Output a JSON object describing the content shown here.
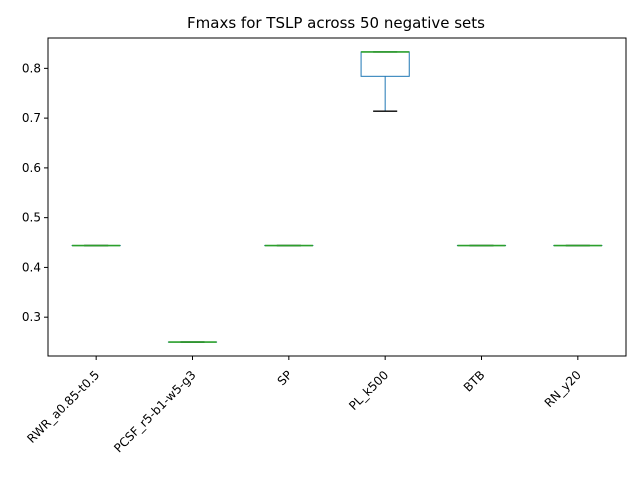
{
  "chart_data": {
    "type": "box",
    "title": "Fmaxs for TSLP across 50 negative sets",
    "xlabel": "",
    "ylabel": "",
    "ylim": [
      0.222,
      0.861
    ],
    "yticks": [
      0.3,
      0.4,
      0.5,
      0.6,
      0.7,
      0.8
    ],
    "grid": false,
    "categories": [
      "RWR_a0.85-t0.5",
      "PCSF_r5-b1-w5-g3",
      "SP",
      "PL_k500",
      "BTB",
      "RN_y20"
    ],
    "boxes": [
      {
        "min": 0.444,
        "q1": 0.444,
        "median": 0.444,
        "q3": 0.444,
        "max": 0.444
      },
      {
        "min": 0.25,
        "q1": 0.25,
        "median": 0.25,
        "q3": 0.25,
        "max": 0.25
      },
      {
        "min": 0.444,
        "q1": 0.444,
        "median": 0.444,
        "q3": 0.444,
        "max": 0.444
      },
      {
        "min": 0.714,
        "q1": 0.784,
        "median": 0.833,
        "q3": 0.833,
        "max": 0.833
      },
      {
        "min": 0.444,
        "q1": 0.444,
        "median": 0.444,
        "q3": 0.444,
        "max": 0.444
      },
      {
        "min": 0.444,
        "q1": 0.444,
        "median": 0.444,
        "q3": 0.444,
        "max": 0.444
      }
    ],
    "colors": {
      "box": "#1f77b4",
      "median": "#2ca02c",
      "cap": "#000000"
    }
  }
}
